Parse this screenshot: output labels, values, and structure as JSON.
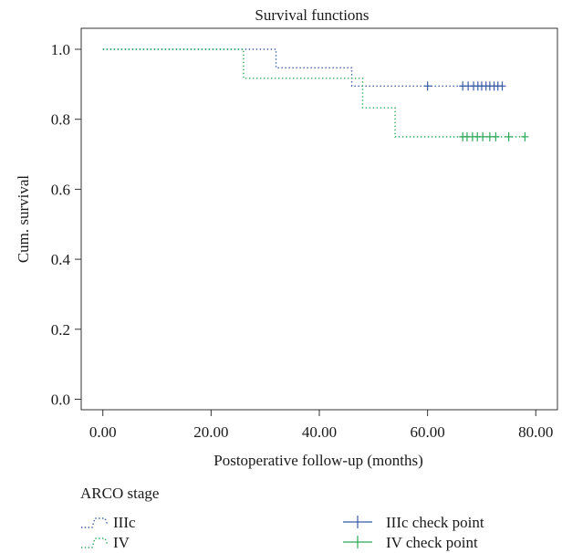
{
  "chart_data": {
    "type": "line",
    "title": "Survival functions",
    "xlabel": "Postoperative follow-up (months)",
    "ylabel": "Cum. survival",
    "xlim": [
      -4,
      84
    ],
    "ylim": [
      -0.03,
      1.06
    ],
    "x_ticks": [
      0,
      20,
      40,
      60,
      80
    ],
    "x_tick_labels": [
      "0.00",
      "20.00",
      "40.00",
      "60.00",
      "80.00"
    ],
    "y_ticks": [
      0,
      0.2,
      0.4,
      0.6,
      0.8,
      1.0
    ],
    "y_tick_labels": [
      "0.0",
      "0.2",
      "0.4",
      "0.6",
      "0.8",
      "1.0"
    ],
    "grid": false,
    "legend": {
      "title": "ARCO stage",
      "placement": "below",
      "line_entries": [
        "IIIc",
        "IV"
      ],
      "marker_entries": [
        "IIIc check point",
        "IV check point"
      ]
    },
    "series": [
      {
        "name": "IIIc",
        "color": "#3b5ba5",
        "style": "dotted-step",
        "steps": [
          [
            0,
            1.0
          ],
          [
            32,
            0.947
          ],
          [
            46,
            0.895
          ],
          [
            74,
            0.895
          ]
        ],
        "censored": [
          60,
          66.5,
          67.5,
          68.5,
          69.3,
          70,
          70.8,
          71.5,
          72.3,
          73,
          73.8
        ],
        "censored_y": 0.895
      },
      {
        "name": "IV",
        "color": "#2ca85a",
        "style": "dotted-step",
        "steps": [
          [
            0,
            1.0
          ],
          [
            26,
            0.917
          ],
          [
            48,
            0.833
          ],
          [
            54,
            0.75
          ],
          [
            78,
            0.75
          ]
        ],
        "censored": [
          66.5,
          67.3,
          68.3,
          69.2,
          70.2,
          71.5,
          72.6,
          75,
          78
        ],
        "censored_y": 0.75
      }
    ]
  }
}
